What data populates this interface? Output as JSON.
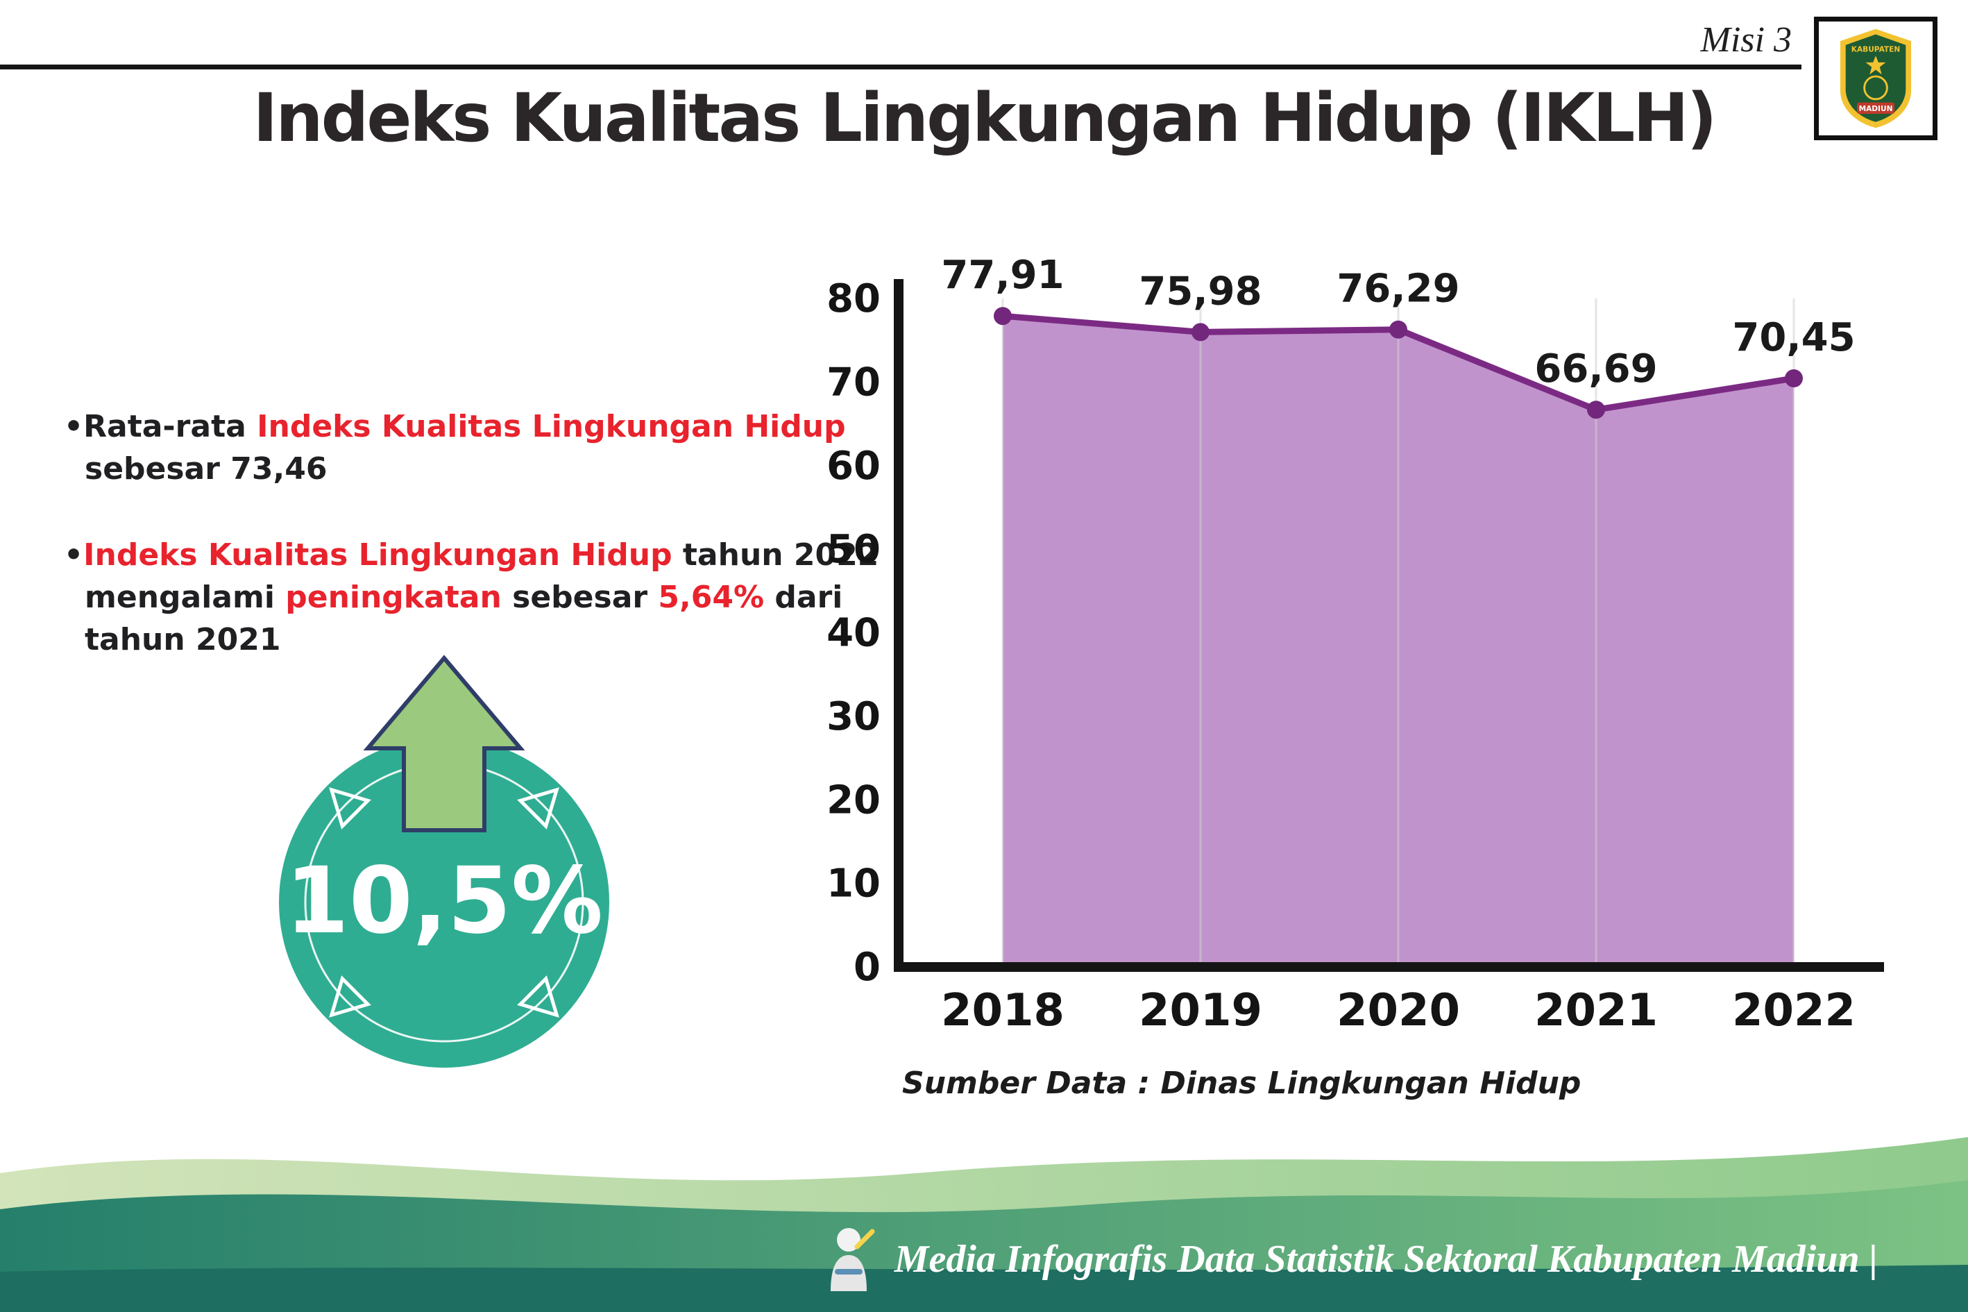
{
  "header": {
    "misi_label": "Misi 3",
    "logo": {
      "top_text": "KABUPATEN",
      "bottom_text": "MADIUN"
    }
  },
  "title": "Indeks Kualitas Lingkungan Hidup (IKLH)",
  "bullets": [
    {
      "segments": [
        {
          "text": "•Rata-rata ",
          "style": "dark"
        },
        {
          "text": "Indeks Kualitas Lingkungan Hidup",
          "style": "red"
        },
        {
          "text": " sebesar 73,46",
          "style": "dark"
        }
      ]
    },
    {
      "segments": [
        {
          "text": "•",
          "style": "dark"
        },
        {
          "text": "Indeks Kualitas Lingkungan Hidup",
          "style": "red"
        },
        {
          "text": " tahun 2022 mengalami ",
          "style": "dark"
        },
        {
          "text": "peningkatan",
          "style": "red"
        },
        {
          "text": " sebesar ",
          "style": "dark"
        },
        {
          "text": "5,64%",
          "style": "red"
        },
        {
          "text": " dari tahun 2021",
          "style": "dark"
        }
      ]
    }
  ],
  "badge": {
    "value": "10,5%"
  },
  "chart_data": {
    "type": "area",
    "categories": [
      "2018",
      "2019",
      "2020",
      "2021",
      "2022"
    ],
    "values": [
      77.91,
      75.98,
      76.29,
      66.69,
      70.45
    ],
    "value_labels": [
      "77,91",
      "75,98",
      "76,29",
      "66,69",
      "70,45"
    ],
    "title": "",
    "xlabel": "",
    "ylabel": "",
    "ylim": [
      0,
      80
    ],
    "ytick_step": 10,
    "grid": "vertical-faint",
    "legend": "none",
    "line_color": "#7b2a84",
    "fill_color": "#c193cc",
    "marker_color": "#72277c",
    "source_note": "Sumber Data : Dinas Lingkungan Hidup"
  },
  "footer": {
    "credit": "Media Infografis Data Statistik Sektoral Kabupaten Madiun |"
  },
  "colors": {
    "accent_red": "#e8232d",
    "badge_teal": "#2fad92",
    "arrow_green": "#9bc97e",
    "arrow_outline": "#2f3e68",
    "chart_line": "#7b2a84",
    "chart_fill": "#c193cc",
    "footer_teal_dark": "#1e6e61"
  }
}
